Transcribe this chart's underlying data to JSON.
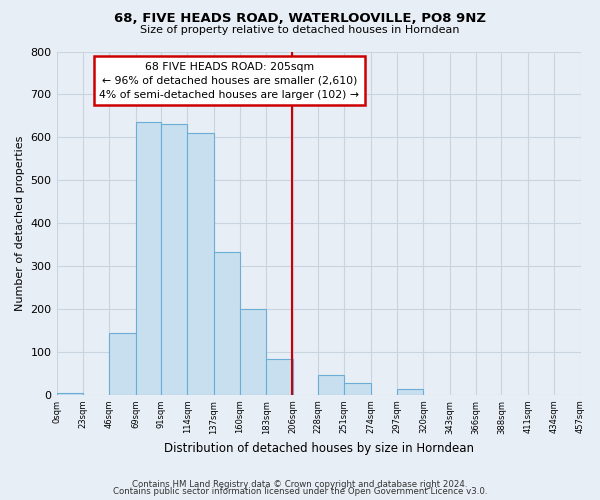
{
  "title": "68, FIVE HEADS ROAD, WATERLOOVILLE, PO8 9NZ",
  "subtitle": "Size of property relative to detached houses in Horndean",
  "xlabel": "Distribution of detached houses by size in Horndean",
  "ylabel": "Number of detached properties",
  "bar_edges": [
    0,
    23,
    46,
    69,
    91,
    114,
    137,
    160,
    183,
    206,
    228,
    251,
    274,
    297,
    320,
    343,
    366,
    388,
    411,
    434,
    457
  ],
  "bar_heights": [
    5,
    0,
    143,
    635,
    632,
    609,
    333,
    201,
    84,
    0,
    47,
    28,
    0,
    13,
    0,
    0,
    0,
    0,
    0,
    0,
    4
  ],
  "bar_color": "#c8dff0",
  "bar_edge_color": "#6aaed6",
  "vline_color": "#cc0000",
  "vline_x": 205,
  "annotation_line1": "68 FIVE HEADS ROAD: 205sqm",
  "annotation_line2": "← 96% of detached houses are smaller (2,610)",
  "annotation_line3": "4% of semi-detached houses are larger (102) →",
  "annotation_box_color": "#ffffff",
  "annotation_border_color": "#cc0000",
  "ylim": [
    0,
    800
  ],
  "yticks": [
    0,
    100,
    200,
    300,
    400,
    500,
    600,
    700,
    800
  ],
  "xtick_labels": [
    "0sqm",
    "23sqm",
    "46sqm",
    "69sqm",
    "91sqm",
    "114sqm",
    "137sqm",
    "160sqm",
    "183sqm",
    "206sqm",
    "228sqm",
    "251sqm",
    "274sqm",
    "297sqm",
    "320sqm",
    "343sqm",
    "366sqm",
    "388sqm",
    "411sqm",
    "434sqm",
    "457sqm"
  ],
  "footnote1": "Contains HM Land Registry data © Crown copyright and database right 2024.",
  "footnote2": "Contains public sector information licensed under the Open Government Licence v3.0.",
  "background_color": "#e8eef5",
  "grid_color": "#c8d4e0"
}
